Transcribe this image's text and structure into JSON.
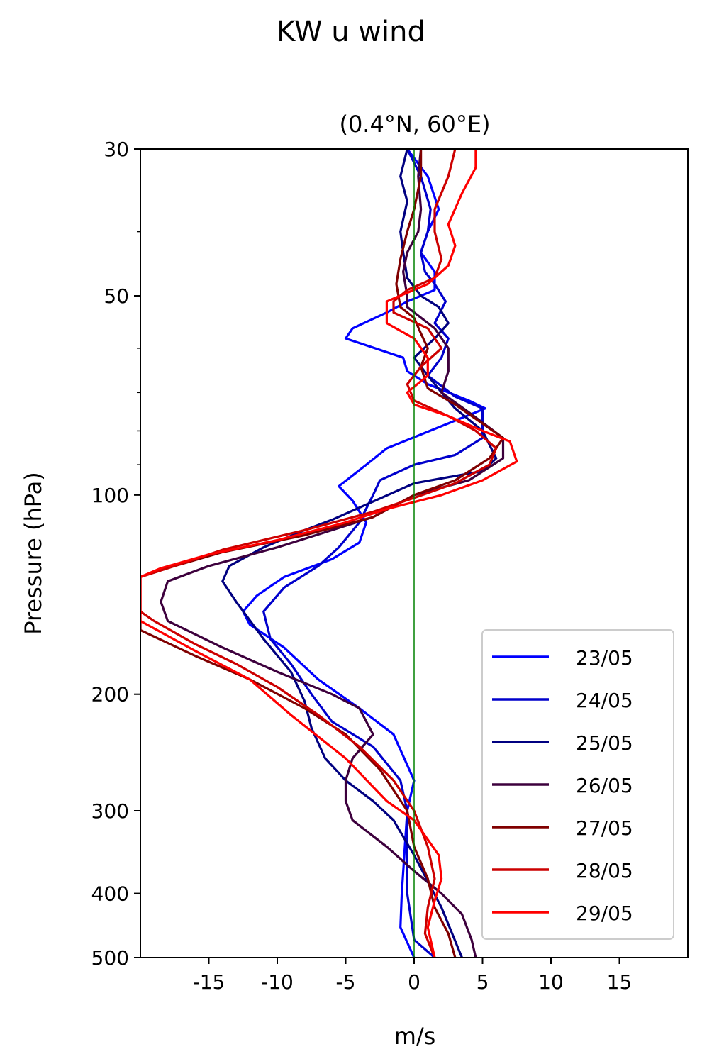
{
  "figure": {
    "suptitle": "KW u wind"
  },
  "chart_data": {
    "type": "line",
    "orientation": "vertical-profile",
    "title": "(0.4°N, 60°E)",
    "xlabel": "m/s",
    "ylabel": "Pressure (hPa)",
    "xlim": [
      -20,
      20
    ],
    "ylim": [
      500,
      30
    ],
    "yscale": "log",
    "x_ticks": [
      -15,
      -10,
      -5,
      0,
      5,
      10,
      15
    ],
    "x_tick_labels": [
      "-15",
      "-10",
      "-5",
      "0",
      "5",
      "10",
      "15"
    ],
    "y_ticks": [
      30,
      50,
      100,
      200,
      300,
      400,
      500
    ],
    "y_tick_labels": [
      "30",
      "50",
      "100",
      "200",
      "300",
      "400",
      "500"
    ],
    "y_minor_ticks": [
      40,
      60,
      70,
      80,
      90
    ],
    "zero_line_color": "#008000",
    "grid": false,
    "legend_position": "lower-right",
    "series": [
      {
        "name": "23/05",
        "color": "#0000ff",
        "points": [
          [
            0.0,
            500
          ],
          [
            -1.0,
            450
          ],
          [
            -0.9,
            400
          ],
          [
            -0.5,
            300
          ],
          [
            0,
            270
          ],
          [
            -1.5,
            230
          ],
          [
            -4,
            210
          ],
          [
            -7,
            190
          ],
          [
            -9.5,
            170
          ],
          [
            -12,
            157
          ],
          [
            -12.5,
            150
          ],
          [
            -11.5,
            142
          ],
          [
            -9.5,
            133
          ],
          [
            -6,
            125
          ],
          [
            -4,
            118
          ],
          [
            -3.5,
            110
          ],
          [
            -4.5,
            102
          ],
          [
            -5.5,
            97
          ],
          [
            -3.5,
            90
          ],
          [
            -2,
            85
          ],
          [
            5.2,
            74
          ],
          [
            4,
            72
          ],
          [
            1,
            68
          ],
          [
            -0.5,
            65
          ],
          [
            -0.8,
            62
          ],
          [
            -5,
            58
          ],
          [
            -4.5,
            56
          ],
          [
            -2,
            53
          ],
          [
            -0.5,
            51
          ],
          [
            1.5,
            49
          ],
          [
            1.5,
            46
          ],
          [
            0.5,
            43
          ],
          [
            1,
            40
          ],
          [
            1.8,
            37
          ],
          [
            1,
            33
          ],
          [
            -0.5,
            30
          ]
        ]
      },
      {
        "name": "24/05",
        "color": "#0000cc",
        "points": [
          [
            1.5,
            500
          ],
          [
            0,
            470
          ],
          [
            -0.5,
            400
          ],
          [
            -0.5,
            300
          ],
          [
            -1,
            270
          ],
          [
            -3,
            240
          ],
          [
            -6,
            220
          ],
          [
            -7.5,
            200
          ],
          [
            -9,
            180
          ],
          [
            -10.5,
            165
          ],
          [
            -11,
            150
          ],
          [
            -9.5,
            138
          ],
          [
            -7,
            128
          ],
          [
            -5.5,
            120
          ],
          [
            -4,
            110
          ],
          [
            -3,
            100
          ],
          [
            -2.5,
            95
          ],
          [
            0,
            90
          ],
          [
            3,
            87
          ],
          [
            5,
            82
          ],
          [
            5,
            74
          ],
          [
            3,
            71
          ],
          [
            1,
            66
          ],
          [
            2,
            62
          ],
          [
            2.5,
            58
          ],
          [
            1.5,
            55
          ],
          [
            2.3,
            51
          ],
          [
            1.5,
            48
          ],
          [
            0.8,
            46
          ],
          [
            0.5,
            43
          ],
          [
            1,
            40
          ],
          [
            1.2,
            37
          ],
          [
            0.5,
            33
          ],
          [
            -0.5,
            30
          ]
        ]
      },
      {
        "name": "25/05",
        "color": "#000080",
        "points": [
          [
            3.5,
            500
          ],
          [
            2,
            420
          ],
          [
            0,
            350
          ],
          [
            -1.5,
            310
          ],
          [
            -3,
            290
          ],
          [
            -5,
            270
          ],
          [
            -6.5,
            250
          ],
          [
            -7.5,
            225
          ],
          [
            -8,
            205
          ],
          [
            -9,
            185
          ],
          [
            -11,
            165
          ],
          [
            -13,
            145
          ],
          [
            -14,
            135
          ],
          [
            -13.5,
            128
          ],
          [
            -11,
            120
          ],
          [
            -8,
            113
          ],
          [
            -6,
            109
          ],
          [
            0,
            96
          ],
          [
            5,
            92
          ],
          [
            6,
            88
          ],
          [
            5,
            80
          ],
          [
            3,
            74
          ],
          [
            2,
            70
          ],
          [
            1,
            66
          ],
          [
            0,
            62
          ],
          [
            1.5,
            58
          ],
          [
            2.5,
            55
          ],
          [
            1.8,
            52
          ],
          [
            0.5,
            50
          ],
          [
            -0.5,
            47
          ],
          [
            -0.8,
            43
          ],
          [
            -1,
            40
          ],
          [
            -0.5,
            36
          ],
          [
            -1,
            33
          ],
          [
            -0.5,
            30
          ]
        ]
      },
      {
        "name": "26/05",
        "color": "#3d003d",
        "points": [
          [
            4.5,
            500
          ],
          [
            4.2,
            470
          ],
          [
            3.5,
            430
          ],
          [
            2,
            400
          ],
          [
            0,
            370
          ],
          [
            -2,
            340
          ],
          [
            -4.5,
            310
          ],
          [
            -5,
            290
          ],
          [
            -5,
            270
          ],
          [
            -4.5,
            250
          ],
          [
            -3,
            230
          ],
          [
            -4,
            210
          ],
          [
            -6,
            200
          ],
          [
            -10,
            185
          ],
          [
            -14,
            170
          ],
          [
            -18,
            155
          ],
          [
            -18.5,
            145
          ],
          [
            -18,
            135
          ],
          [
            -15,
            128
          ],
          [
            -10,
            120
          ],
          [
            -3,
            108
          ],
          [
            0,
            100
          ],
          [
            4,
            95
          ],
          [
            6.5,
            88
          ],
          [
            6.5,
            82
          ],
          [
            4,
            75
          ],
          [
            2,
            70
          ],
          [
            2.5,
            65
          ],
          [
            2.5,
            60
          ],
          [
            1.5,
            56
          ],
          [
            -0.5,
            52
          ],
          [
            -0.5,
            50
          ],
          [
            -0.8,
            46
          ],
          [
            -0.5,
            43
          ],
          [
            0.3,
            40
          ],
          [
            0.5,
            37
          ],
          [
            0.3,
            33
          ],
          [
            0.5,
            30
          ]
        ]
      },
      {
        "name": "27/05",
        "color": "#800000",
        "points": [
          [
            3,
            500
          ],
          [
            2.5,
            460
          ],
          [
            1.5,
            420
          ],
          [
            1,
            380
          ],
          [
            0,
            340
          ],
          [
            -0.5,
            300
          ],
          [
            -2.5,
            260
          ],
          [
            -5,
            230
          ],
          [
            -8,
            210
          ],
          [
            -12,
            190
          ],
          [
            -16,
            175
          ],
          [
            -20,
            160
          ],
          [
            -20,
            133
          ],
          [
            -17.5,
            128
          ],
          [
            -14,
            122
          ],
          [
            -8,
            115
          ],
          [
            -3,
            108
          ],
          [
            0,
            100
          ],
          [
            3,
            95
          ],
          [
            5.5,
            88
          ],
          [
            6.5,
            82
          ],
          [
            5,
            78
          ],
          [
            3,
            73
          ],
          [
            1,
            69
          ],
          [
            0.5,
            64
          ],
          [
            1,
            60
          ],
          [
            0.5,
            57
          ],
          [
            0,
            54
          ],
          [
            -1,
            52
          ],
          [
            -1.3,
            48
          ],
          [
            -1,
            44
          ],
          [
            -0.5,
            40
          ],
          [
            0,
            37
          ],
          [
            0.5,
            33
          ],
          [
            0.5,
            30
          ]
        ]
      },
      {
        "name": "28/05",
        "color": "#cc0000",
        "points": [
          [
            1.5,
            500
          ],
          [
            0.8,
            460
          ],
          [
            1,
            420
          ],
          [
            1.5,
            380
          ],
          [
            1,
            340
          ],
          [
            0,
            300
          ],
          [
            -1.5,
            270
          ],
          [
            -4,
            240
          ],
          [
            -7,
            215
          ],
          [
            -10,
            195
          ],
          [
            -13,
            180
          ],
          [
            -16,
            168
          ],
          [
            -19,
            155
          ],
          [
            -20,
            150
          ],
          [
            -20,
            133
          ],
          [
            -17.5,
            128
          ],
          [
            -14,
            121
          ],
          [
            -8,
            113
          ],
          [
            -3,
            106
          ],
          [
            0,
            101
          ],
          [
            3,
            96
          ],
          [
            5.5,
            90
          ],
          [
            6,
            85
          ],
          [
            4.5,
            80
          ],
          [
            2.5,
            76
          ],
          [
            0,
            72
          ],
          [
            -0.5,
            68
          ],
          [
            0.5,
            64
          ],
          [
            2,
            60
          ],
          [
            1,
            56
          ],
          [
            -1.5,
            53
          ],
          [
            -1.5,
            51
          ],
          [
            -0.5,
            49
          ],
          [
            1.5,
            47
          ],
          [
            2,
            44
          ],
          [
            1.5,
            40
          ],
          [
            1.5,
            37
          ],
          [
            2.5,
            33
          ],
          [
            3,
            30
          ]
        ]
      },
      {
        "name": "29/05",
        "color": "#ff0000",
        "points": [
          [
            1.5,
            500
          ],
          [
            1,
            450
          ],
          [
            1.5,
            410
          ],
          [
            2,
            380
          ],
          [
            1.8,
            350
          ],
          [
            0,
            310
          ],
          [
            -2,
            290
          ],
          [
            -5,
            250
          ],
          [
            -9,
            215
          ],
          [
            -12,
            190
          ],
          [
            -16,
            172
          ],
          [
            -20,
            155
          ],
          [
            -20,
            133
          ],
          [
            -18.5,
            129
          ],
          [
            -15,
            123
          ],
          [
            -10,
            117
          ],
          [
            -5,
            110
          ],
          [
            -2,
            105
          ],
          [
            2,
            100
          ],
          [
            5,
            95
          ],
          [
            7.5,
            89
          ],
          [
            7,
            83
          ],
          [
            5,
            80
          ],
          [
            2.5,
            76
          ],
          [
            0,
            73
          ],
          [
            -0.5,
            70
          ],
          [
            1,
            66
          ],
          [
            1,
            62
          ],
          [
            0,
            58
          ],
          [
            -2,
            55
          ],
          [
            -2,
            51
          ],
          [
            1,
            48
          ],
          [
            2.5,
            45
          ],
          [
            3,
            42
          ],
          [
            2.5,
            39
          ],
          [
            3.5,
            35
          ],
          [
            4.5,
            32
          ],
          [
            4.5,
            30
          ]
        ]
      }
    ]
  }
}
